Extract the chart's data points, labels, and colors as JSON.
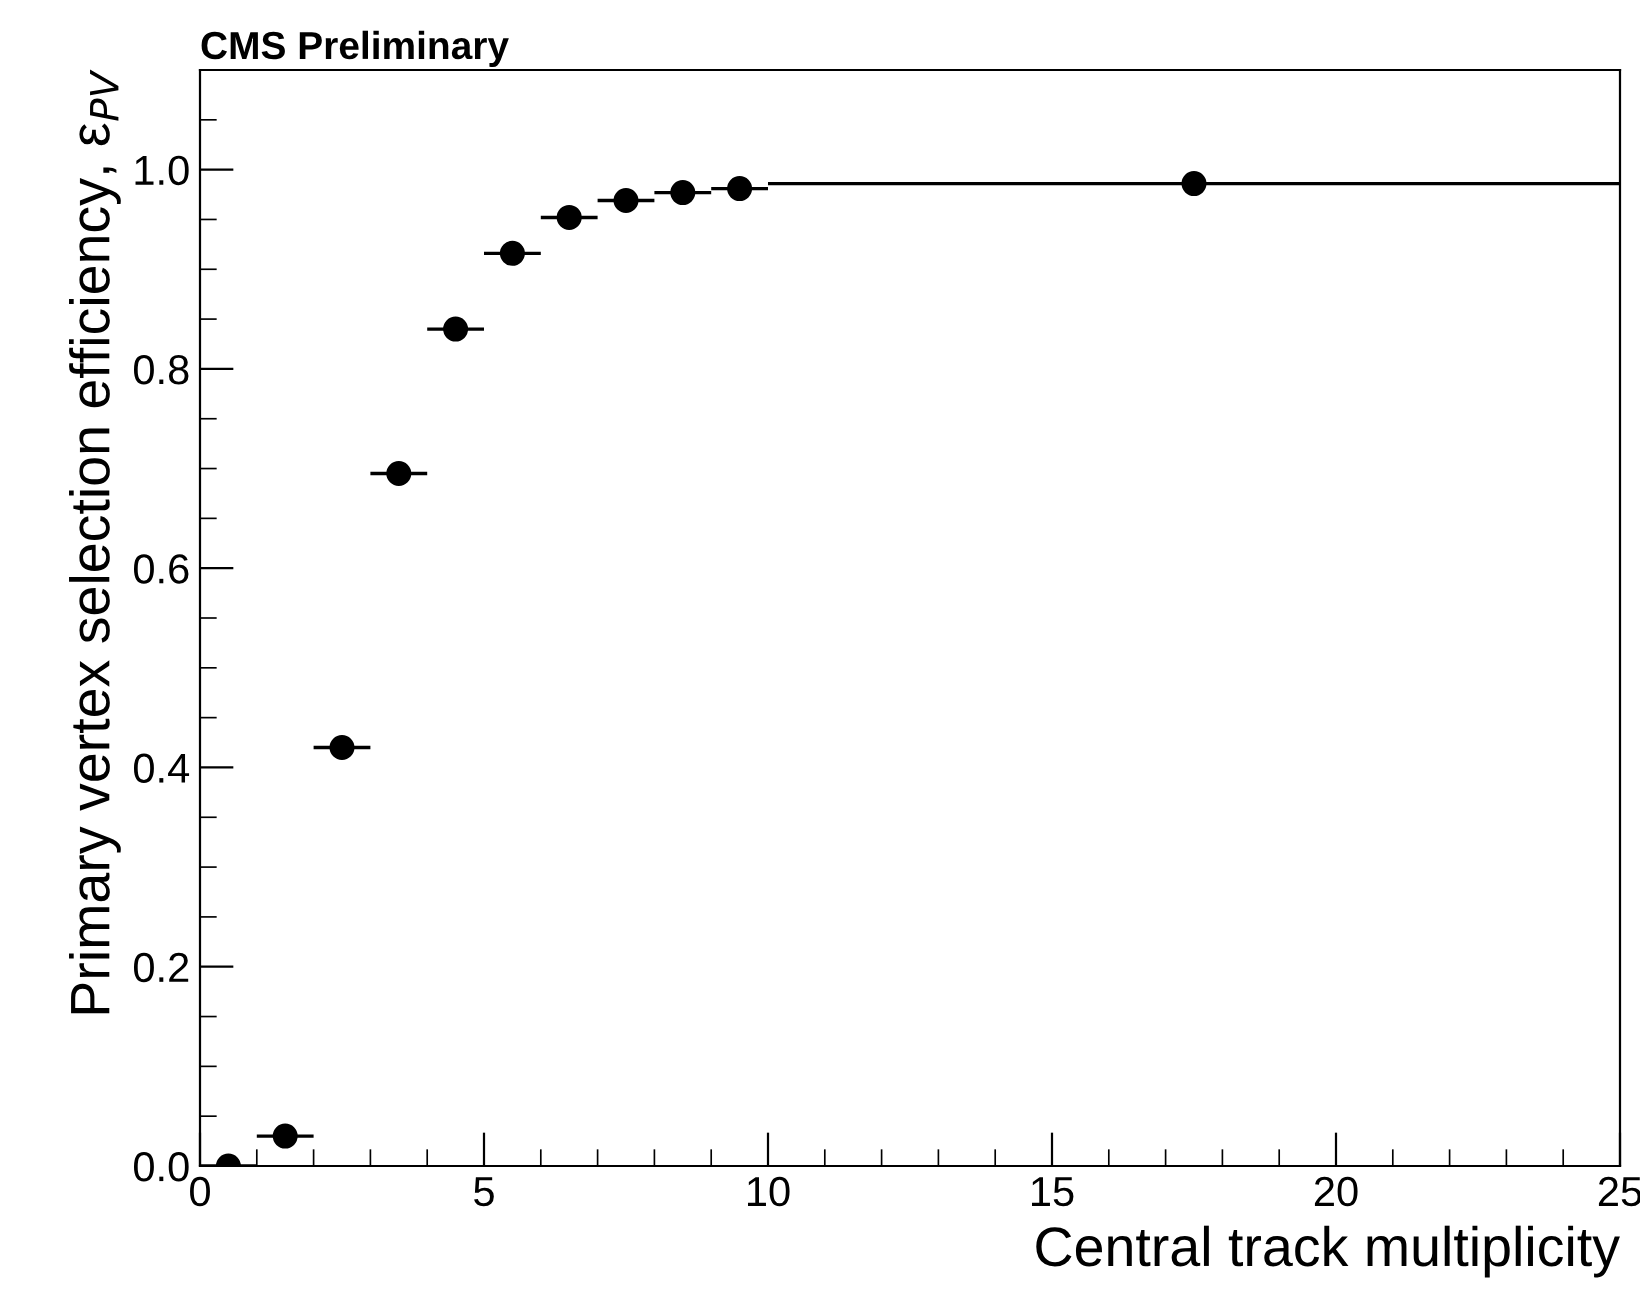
{
  "chart_data": {
    "type": "scatter",
    "title": "CMS Preliminary",
    "xlabel": "Central track multiplicity",
    "ylabel": "Primary vertex selection efficiency, ε$_{PV}$",
    "x": [
      0.5,
      1.5,
      2.5,
      3.5,
      4.5,
      5.5,
      6.5,
      7.5,
      8.5,
      9.5,
      17.5
    ],
    "values": [
      0.0,
      0.03,
      0.42,
      0.695,
      0.84,
      0.916,
      0.952,
      0.969,
      0.977,
      0.981,
      0.986
    ],
    "xerrors": [
      0.5,
      0.5,
      0.5,
      0.5,
      0.5,
      0.5,
      0.5,
      0.5,
      0.5,
      0.5,
      7.5
    ],
    "color": "#000000",
    "marker": "circle",
    "xlim": [
      0,
      25
    ],
    "xticks": [
      0,
      5,
      10,
      15,
      20,
      25
    ],
    "ylim": [
      0,
      1.1
    ],
    "yticks": [
      {
        "value": 0,
        "label": "0.0"
      },
      {
        "value": 0.2,
        "label": "0.2"
      },
      {
        "value": 0.4,
        "label": "0.4"
      },
      {
        "value": 0.6,
        "label": "0.6"
      },
      {
        "value": 0.8,
        "label": "0.8"
      },
      {
        "value": 1.0,
        "label": "1.0"
      }
    ],
    "grid": false,
    "legend": false
  }
}
